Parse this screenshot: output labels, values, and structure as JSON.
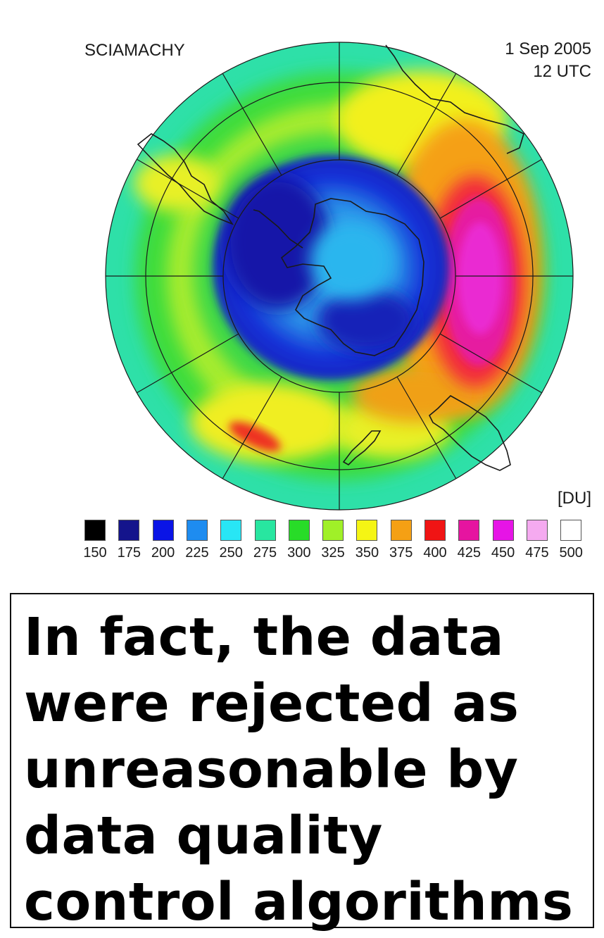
{
  "map": {
    "instrument": "SCIAMACHY",
    "date": "1 Sep 2005",
    "time": "12 UTC",
    "unit": "[DU]",
    "subject": "Southern hemisphere total ozone column (polar projection)"
  },
  "legend": {
    "entries": [
      {
        "value": "150",
        "color": "#000000"
      },
      {
        "value": "175",
        "color": "#14148c"
      },
      {
        "value": "200",
        "color": "#0a14e6"
      },
      {
        "value": "225",
        "color": "#1e8cf0"
      },
      {
        "value": "250",
        "color": "#28e6f5"
      },
      {
        "value": "275",
        "color": "#28e6a0"
      },
      {
        "value": "300",
        "color": "#28dc28"
      },
      {
        "value": "325",
        "color": "#a0f028"
      },
      {
        "value": "350",
        "color": "#f5f514"
      },
      {
        "value": "375",
        "color": "#f5a014"
      },
      {
        "value": "400",
        "color": "#f01414"
      },
      {
        "value": "425",
        "color": "#e614a0"
      },
      {
        "value": "450",
        "color": "#e614e6"
      },
      {
        "value": "475",
        "color": "#f5aaf0"
      },
      {
        "value": "500",
        "color": "#ffffff"
      }
    ]
  },
  "caption": {
    "text": "In fact, the data were rejected as unreasonable by data quality control algorithms"
  }
}
